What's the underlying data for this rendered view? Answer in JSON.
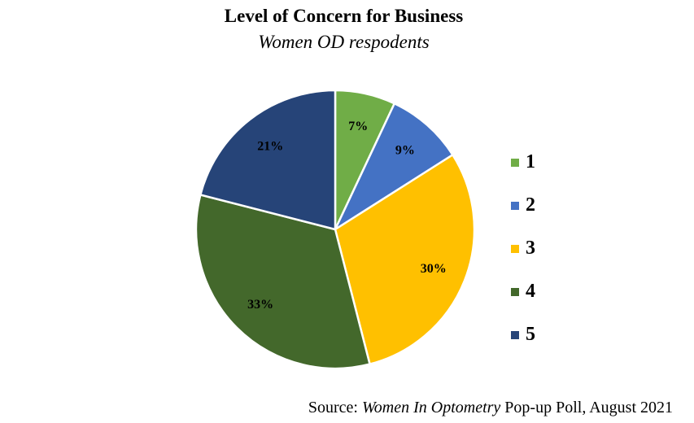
{
  "chart_data": {
    "type": "pie",
    "title": "Level of Concern for Business",
    "subtitle": "Women OD respodents",
    "categories": [
      "1",
      "2",
      "3",
      "4",
      "5"
    ],
    "values": [
      7,
      9,
      30,
      33,
      21
    ],
    "value_labels": [
      "7%",
      "9%",
      "30%",
      "33%",
      "21%"
    ],
    "colors": [
      "#70AD47",
      "#4472C4",
      "#FFC000",
      "#43682B",
      "#264478"
    ],
    "legend_position": "right",
    "start_angle_deg": 0,
    "direction": "clockwise"
  },
  "source": {
    "prefix": "Source: ",
    "italic": "Women In Optometry",
    "suffix": " Pop-up Poll, August 2021"
  }
}
